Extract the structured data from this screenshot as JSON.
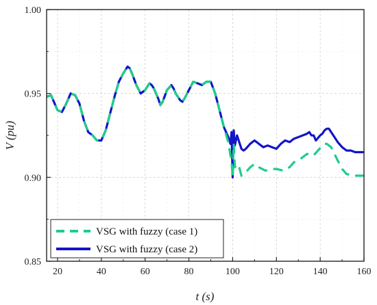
{
  "chart_data": {
    "type": "line",
    "xlabel": "t (s)",
    "ylabel": "V (pu)",
    "xlim": [
      15,
      160
    ],
    "ylim": [
      0.85,
      1.0
    ],
    "xticks": [
      20,
      40,
      60,
      80,
      100,
      120,
      140,
      160
    ],
    "yticks": [
      0.85,
      0.9,
      0.95,
      1.0
    ],
    "xtick_labels": [
      "20",
      "40",
      "60",
      "80",
      "100",
      "120",
      "140",
      "160"
    ],
    "ytick_labels": [
      "0.85",
      "0.90",
      "0.95",
      "1.00"
    ],
    "grid": true,
    "legend_position": "bottom-left",
    "series": [
      {
        "name": "VSG with fuzzy (case 1)",
        "color": "#1fcc8a",
        "style": "dashed",
        "x": [
          15,
          17,
          20,
          22,
          24,
          26,
          28,
          30,
          32,
          34,
          36,
          38,
          40,
          42,
          44,
          46,
          48,
          50,
          52,
          53,
          54,
          56,
          58,
          60,
          62,
          63,
          64,
          66,
          67,
          68,
          70,
          72,
          73,
          74,
          76,
          77,
          78,
          80,
          82,
          84,
          86,
          88,
          90,
          92,
          94,
          96,
          98,
          99,
          99.5,
          100,
          100.5,
          101,
          102,
          103,
          104,
          106,
          108,
          110,
          112,
          115,
          118,
          120,
          123,
          126,
          128,
          130,
          132,
          134,
          136,
          137,
          139,
          141,
          142,
          143,
          145,
          148,
          150,
          152,
          155,
          158,
          160
        ],
        "y": [
          0.948,
          0.949,
          0.94,
          0.939,
          0.944,
          0.95,
          0.949,
          0.944,
          0.934,
          0.927,
          0.925,
          0.922,
          0.922,
          0.928,
          0.938,
          0.948,
          0.957,
          0.962,
          0.966,
          0.965,
          0.962,
          0.955,
          0.95,
          0.952,
          0.956,
          0.955,
          0.953,
          0.947,
          0.943,
          0.945,
          0.952,
          0.955,
          0.953,
          0.95,
          0.946,
          0.945,
          0.947,
          0.952,
          0.957,
          0.956,
          0.955,
          0.957,
          0.957,
          0.95,
          0.94,
          0.93,
          0.921,
          0.913,
          0.91,
          0.9,
          0.92,
          0.906,
          0.908,
          0.906,
          0.901,
          0.903,
          0.906,
          0.908,
          0.906,
          0.904,
          0.905,
          0.905,
          0.904,
          0.906,
          0.909,
          0.91,
          0.912,
          0.914,
          0.913,
          0.913,
          0.916,
          0.919,
          0.92,
          0.92,
          0.918,
          0.91,
          0.905,
          0.902,
          0.901,
          0.901,
          0.901
        ]
      },
      {
        "name": "VSG with fuzzy (case 2)",
        "color": "#1414c8",
        "style": "solid",
        "x": [
          15,
          17,
          20,
          22,
          24,
          26,
          28,
          30,
          32,
          34,
          36,
          38,
          40,
          42,
          44,
          46,
          48,
          50,
          52,
          53,
          54,
          56,
          58,
          60,
          62,
          63,
          64,
          66,
          67,
          68,
          70,
          72,
          73,
          74,
          76,
          77,
          78,
          80,
          82,
          84,
          86,
          88,
          90,
          92,
          94,
          96,
          98,
          99,
          99.5,
          100,
          100.5,
          101,
          102,
          103,
          104,
          105,
          106,
          108,
          110,
          112,
          114,
          116,
          118,
          120,
          122,
          124,
          126,
          128,
          130,
          132,
          134,
          135,
          136,
          137,
          138,
          140,
          141,
          142,
          143,
          144,
          146,
          148,
          150,
          152,
          154,
          156,
          158,
          160
        ],
        "y": [
          0.948,
          0.949,
          0.94,
          0.939,
          0.944,
          0.95,
          0.949,
          0.944,
          0.934,
          0.927,
          0.925,
          0.922,
          0.922,
          0.928,
          0.938,
          0.948,
          0.957,
          0.962,
          0.966,
          0.965,
          0.962,
          0.955,
          0.95,
          0.952,
          0.956,
          0.955,
          0.953,
          0.947,
          0.943,
          0.945,
          0.952,
          0.955,
          0.953,
          0.95,
          0.946,
          0.945,
          0.947,
          0.952,
          0.957,
          0.956,
          0.955,
          0.957,
          0.957,
          0.95,
          0.94,
          0.93,
          0.924,
          0.92,
          0.927,
          0.9,
          0.928,
          0.919,
          0.925,
          0.921,
          0.917,
          0.916,
          0.917,
          0.92,
          0.922,
          0.92,
          0.918,
          0.919,
          0.918,
          0.917,
          0.92,
          0.922,
          0.921,
          0.923,
          0.924,
          0.925,
          0.926,
          0.927,
          0.925,
          0.925,
          0.922,
          0.925,
          0.926,
          0.928,
          0.929,
          0.929,
          0.925,
          0.921,
          0.918,
          0.916,
          0.916,
          0.915,
          0.915,
          0.915
        ]
      }
    ]
  }
}
